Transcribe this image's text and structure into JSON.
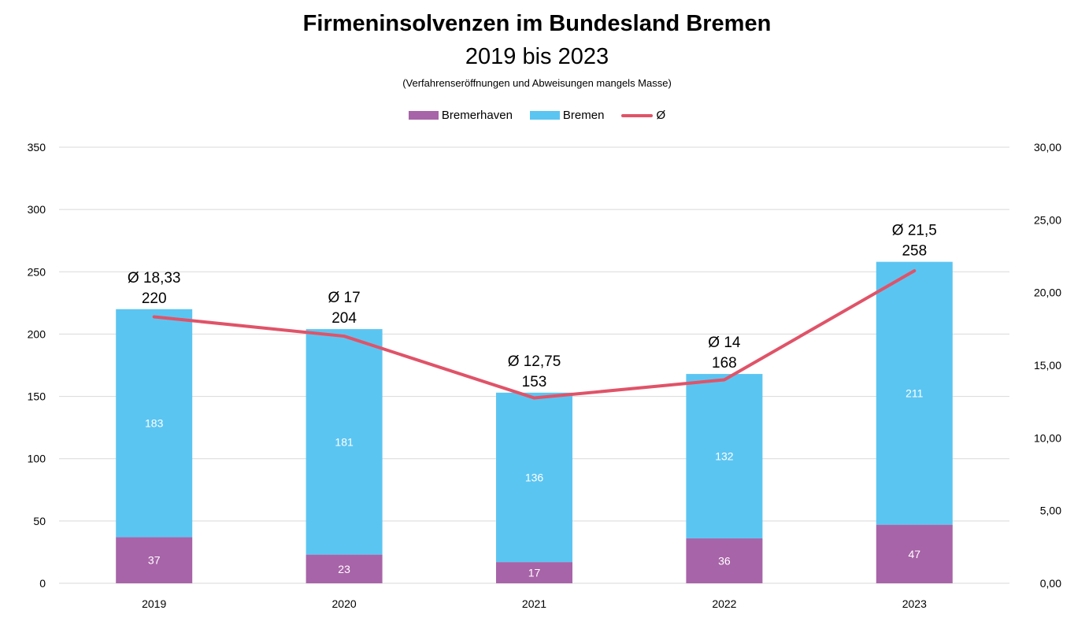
{
  "chart_data": {
    "type": "bar",
    "title": "Firmeninsolvenzen im Bundesland Bremen",
    "subtitle": "2019 bis 2023",
    "note": "(Verfahrenseröffnungen und Abweisungen mangels Masse)",
    "categories": [
      "2019",
      "2020",
      "2021",
      "2022",
      "2023"
    ],
    "series": [
      {
        "name": "Bremerhaven",
        "type": "stacked-bar",
        "axis": "left",
        "color": "#A864A8",
        "values": [
          37,
          23,
          17,
          36,
          47
        ]
      },
      {
        "name": "Bremen",
        "type": "stacked-bar",
        "axis": "left",
        "color": "#5BC5F2",
        "values": [
          183,
          181,
          136,
          132,
          211
        ]
      },
      {
        "name": "Ø",
        "type": "line",
        "axis": "right",
        "color": "#E05368",
        "values": [
          18.33,
          17,
          12.75,
          14,
          21.5
        ]
      }
    ],
    "totals": [
      "220",
      "204",
      "153",
      "168",
      "258"
    ],
    "avg_labels": [
      "Ø 18,33",
      "Ø 17",
      "Ø 12,75",
      "Ø 14",
      "Ø 21,5"
    ],
    "ylim": [
      0,
      350
    ],
    "yticks": [
      "0",
      "50",
      "100",
      "150",
      "200",
      "250",
      "300",
      "350"
    ],
    "y2lim": [
      0,
      30
    ],
    "y2ticks": [
      "0,00",
      "5,00",
      "10,00",
      "15,00",
      "20,00",
      "25,00",
      "30,00"
    ],
    "grid": true,
    "legend_position": "top"
  }
}
